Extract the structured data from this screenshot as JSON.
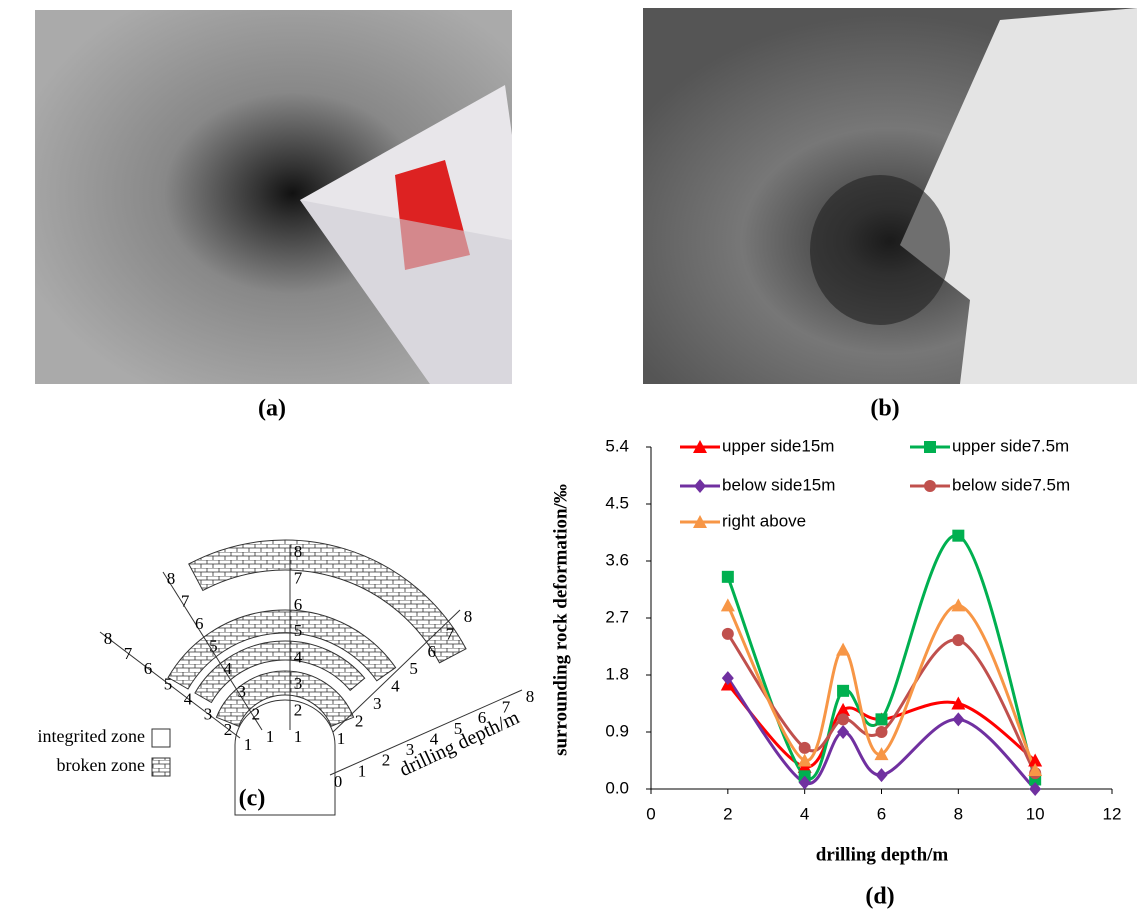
{
  "figure": {
    "panel_labels": [
      "(a)",
      "(b)",
      "(c)",
      "(d)"
    ],
    "diagram": {
      "legend": [
        "integrited zone",
        "broken zone"
      ],
      "axis_label": "drilling depth/m",
      "rulers": [
        [
          "1",
          "2",
          "3",
          "4",
          "5",
          "6",
          "7",
          "8"
        ],
        [
          "1",
          "2",
          "3",
          "4",
          "5",
          "6",
          "7",
          "8"
        ],
        [
          "1",
          "2",
          "3",
          "4",
          "5",
          "6",
          "7",
          "8"
        ],
        [
          "1",
          "2",
          "3",
          "4",
          "5",
          "6",
          "7",
          "8"
        ],
        [
          "0",
          "1",
          "2",
          "3",
          "4",
          "5",
          "6",
          "7",
          "8"
        ]
      ]
    }
  },
  "chart_data": {
    "type": "line",
    "x_label": "drilling depth/m",
    "y_label": "surrounding rock deformation/‰",
    "x": [
      2,
      4,
      5,
      6,
      8,
      10
    ],
    "series": [
      {
        "name": "upper side15m",
        "color": "#ff0000",
        "marker": "triangle",
        "values": [
          1.65,
          0.35,
          1.25,
          1.1,
          1.35,
          0.45
        ]
      },
      {
        "name": "upper side7.5m",
        "color": "#00b050",
        "marker": "square",
        "values": [
          3.35,
          0.2,
          1.55,
          1.1,
          4.0,
          0.15
        ]
      },
      {
        "name": "below side15m",
        "color": "#7030a0",
        "marker": "diamond",
        "values": [
          1.75,
          0.1,
          0.9,
          0.22,
          1.1,
          0.0
        ]
      },
      {
        "name": "below side7.5m",
        "color": "#c0504d",
        "marker": "circle",
        "values": [
          2.45,
          0.65,
          1.1,
          0.9,
          2.35,
          0.25
        ]
      },
      {
        "name": "right above",
        "color": "#f79646",
        "marker": "triangle",
        "values": [
          2.9,
          0.45,
          2.2,
          0.55,
          2.9,
          0.3
        ]
      }
    ],
    "xlim": [
      0,
      12
    ],
    "xticks": [
      0,
      2,
      4,
      6,
      8,
      10,
      12
    ],
    "ylim": [
      0,
      5.4
    ],
    "yticks": [
      {
        "value": 0,
        "label": "0.0"
      },
      0.9,
      1.8,
      2.7,
      3.6,
      4.5,
      5.4
    ],
    "smooth": true
  }
}
